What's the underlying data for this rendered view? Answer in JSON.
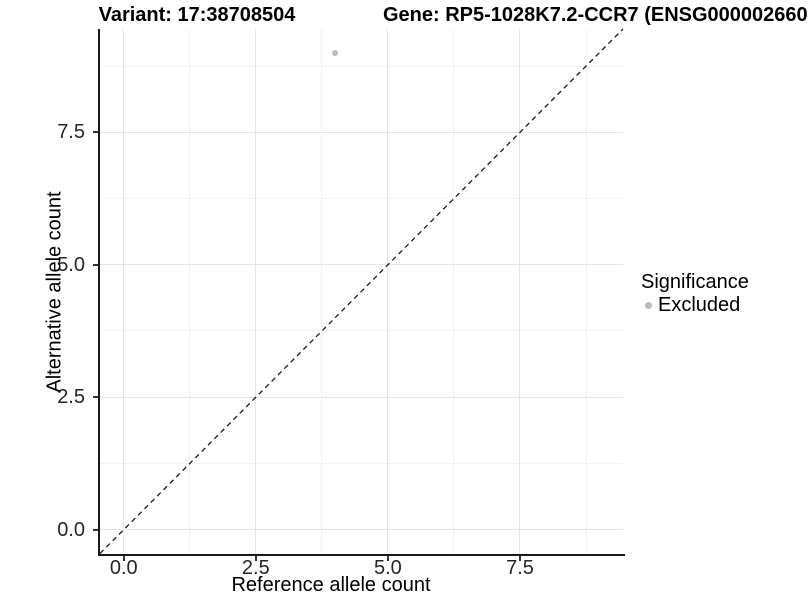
{
  "titles": {
    "variant": "Variant: 17:38708504",
    "gene": "Gene: RP5-1028K7.2-CCR7 (ENSG000002660"
  },
  "chart_data": {
    "type": "scatter",
    "title_left": "Variant: 17:38708504",
    "title_right": "Gene: RP5-1028K7.2-CCR7 (ENSG000002660",
    "xlabel": "Reference allele count",
    "ylabel": "Alternative allele count",
    "xlim": [
      -0.45,
      9.45
    ],
    "ylim": [
      -0.45,
      9.45
    ],
    "x_ticks": [
      0.0,
      2.5,
      5.0,
      7.5
    ],
    "y_ticks": [
      0.0,
      2.5,
      5.0,
      7.5
    ],
    "x_tick_labels": [
      "0.0",
      "2.5",
      "5.0",
      "7.5"
    ],
    "y_tick_labels": [
      "0.0",
      "2.5",
      "5.0",
      "7.5"
    ],
    "x_minor_ticks": [
      1.25,
      3.75,
      6.25,
      8.75
    ],
    "y_minor_ticks": [
      1.25,
      3.75,
      6.25,
      8.75
    ],
    "grid": true,
    "legend_position": "right",
    "series": [
      {
        "name": "Excluded",
        "color": "#bcbcbc",
        "marker_diameter_px": 6,
        "points": [
          {
            "x": 4,
            "y": 9
          }
        ]
      }
    ],
    "reference_line": {
      "type": "identity",
      "style": "dashed",
      "color": "#1a1a1a",
      "from": [
        -0.45,
        -0.45
      ],
      "to": [
        9.45,
        9.45
      ]
    },
    "legend": {
      "title": "Significance",
      "entries": [
        {
          "label": "Excluded",
          "color": "#bcbcbc"
        }
      ]
    }
  },
  "colors": {
    "background": "#ffffff",
    "grid_major": "#e5e5e5",
    "grid_minor": "#f2f2f2",
    "axis_line": "#1a1a1a",
    "tick_text": "#262626",
    "point": "#bcbcbc"
  }
}
